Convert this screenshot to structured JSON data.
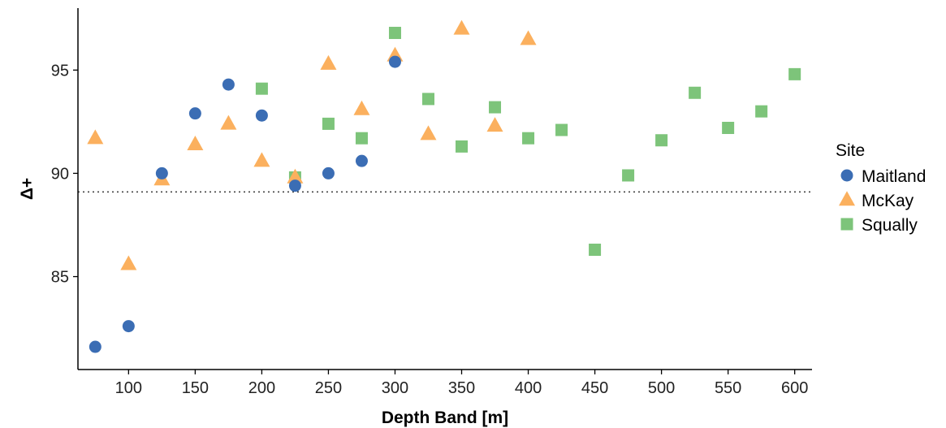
{
  "chart_data": {
    "type": "scatter",
    "title": "",
    "xlabel": "Depth Band [m]",
    "ylabel": "Δ+",
    "xlim": [
      62,
      613
    ],
    "ylim": [
      80.5,
      98
    ],
    "xticks": [
      100,
      150,
      200,
      250,
      300,
      350,
      400,
      450,
      500,
      550,
      600
    ],
    "yticks": [
      85,
      90,
      95
    ],
    "reference_line_y": 89.1,
    "grid": false,
    "legend": {
      "title": "Site",
      "placement": "right"
    },
    "series": [
      {
        "name": "Maitland",
        "marker": "circle",
        "color": "#3b6db4",
        "points": [
          [
            75,
            81.6
          ],
          [
            100,
            82.6
          ],
          [
            125,
            90.0
          ],
          [
            150,
            92.9
          ],
          [
            175,
            94.3
          ],
          [
            200,
            92.8
          ],
          [
            225,
            89.4
          ],
          [
            250,
            90.0
          ],
          [
            275,
            90.6
          ],
          [
            300,
            95.4
          ]
        ]
      },
      {
        "name": "McKay",
        "marker": "triangle",
        "color": "#fbb05e",
        "points": [
          [
            75,
            91.7
          ],
          [
            100,
            85.6
          ],
          [
            125,
            89.7
          ],
          [
            150,
            91.4
          ],
          [
            175,
            92.4
          ],
          [
            200,
            90.6
          ],
          [
            225,
            89.8
          ],
          [
            250,
            95.3
          ],
          [
            275,
            93.1
          ],
          [
            300,
            95.7
          ],
          [
            325,
            91.9
          ],
          [
            350,
            97.0
          ],
          [
            375,
            92.3
          ],
          [
            400,
            96.5
          ]
        ]
      },
      {
        "name": "Squally",
        "marker": "square",
        "color": "#7dc47a",
        "points": [
          [
            200,
            94.1
          ],
          [
            225,
            89.8
          ],
          [
            250,
            92.4
          ],
          [
            275,
            91.7
          ],
          [
            300,
            96.8
          ],
          [
            325,
            93.6
          ],
          [
            350,
            91.3
          ],
          [
            375,
            93.2
          ],
          [
            400,
            91.7
          ],
          [
            425,
            92.1
          ],
          [
            450,
            86.3
          ],
          [
            475,
            89.9
          ],
          [
            500,
            91.6
          ],
          [
            525,
            93.9
          ],
          [
            550,
            92.2
          ],
          [
            575,
            93.0
          ],
          [
            600,
            94.8
          ]
        ]
      }
    ]
  }
}
